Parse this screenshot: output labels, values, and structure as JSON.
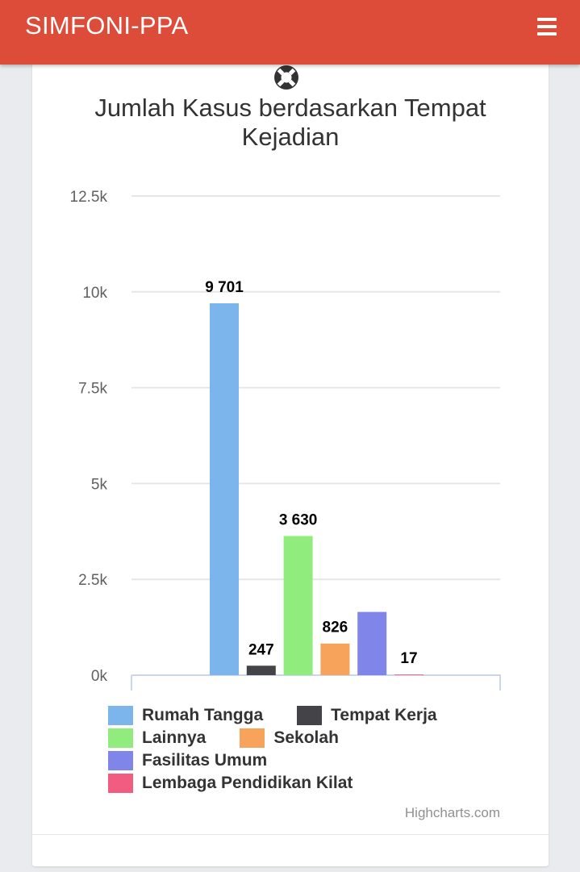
{
  "app": {
    "title": "SIMFONI-PPA",
    "menu_icon": "hamburger-menu-icon",
    "header_color": "#dd4b39"
  },
  "card": {
    "top_icon": "lifebuoy-icon",
    "credits": "Highcharts.com"
  },
  "chart_data": {
    "type": "bar",
    "title": "Jumlah Kasus berdasarkan Tempat Kejadian",
    "xlabel": "",
    "ylabel": "",
    "ylim": [
      0,
      12500
    ],
    "yticks": [
      "0k",
      "2.5k",
      "5k",
      "7.5k",
      "10k",
      "12.5k"
    ],
    "ytick_values": [
      0,
      2500,
      5000,
      7500,
      10000,
      12500
    ],
    "grid": true,
    "legend_position": "bottom-left",
    "series": [
      {
        "name": "Rumah Tangga",
        "value": 9701,
        "label": "9 701",
        "color": "#7cb5ec"
      },
      {
        "name": "Tempat Kerja",
        "value": 247,
        "label": "247",
        "color": "#434348"
      },
      {
        "name": "Lainnya",
        "value": 3630,
        "label": "3 630",
        "color": "#90ed7d"
      },
      {
        "name": "Sekolah",
        "value": 826,
        "label": "826",
        "color": "#f7a35c"
      },
      {
        "name": "Fasilitas Umum",
        "value": 1650,
        "label": "",
        "color": "#8085e9"
      },
      {
        "name": "Lembaga Pendidikan Kilat",
        "value": 17,
        "label": "17",
        "color": "#f15c80"
      }
    ]
  }
}
